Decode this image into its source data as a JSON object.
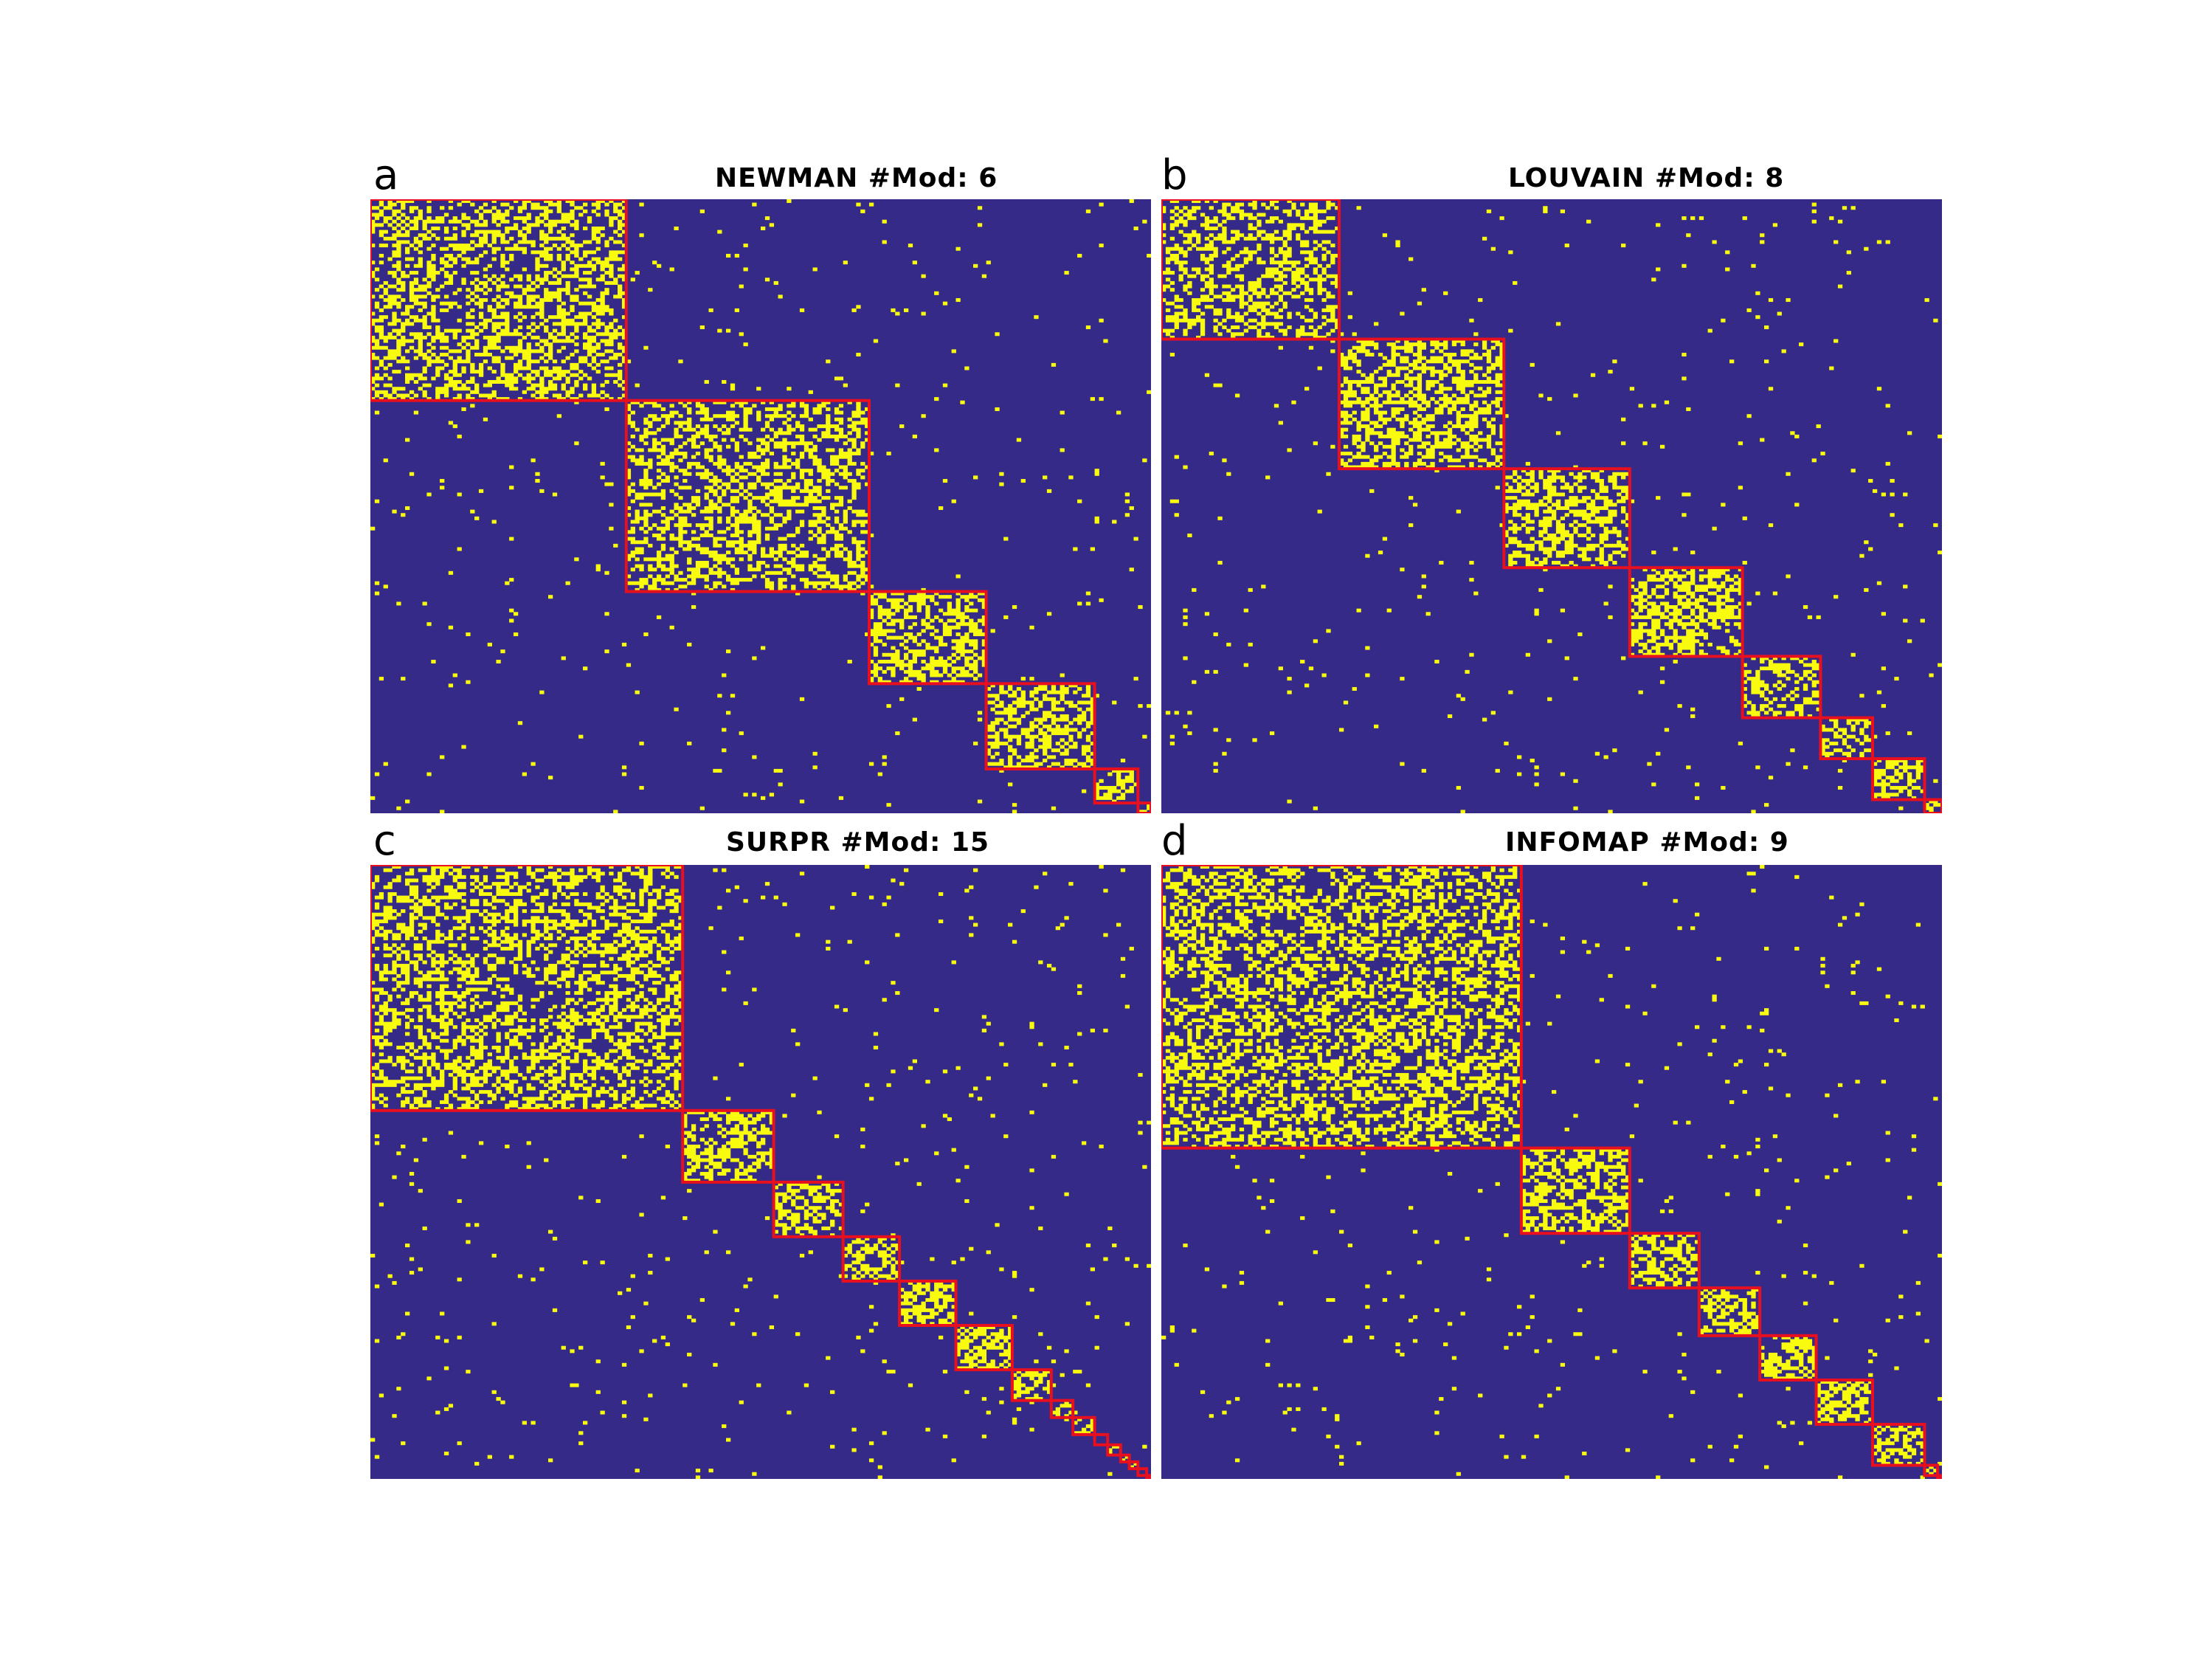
{
  "colors": {
    "background": "#352A87",
    "edge": "#F9FB0E",
    "module_border": "#E8101E"
  },
  "chart_data": [
    {
      "type": "heatmap",
      "panel_letter": "a",
      "title": "NEWMAN #Mod: 6",
      "n_nodes": 180,
      "modules": [
        59,
        56,
        27,
        25,
        10,
        3
      ]
    },
    {
      "type": "heatmap",
      "panel_letter": "b",
      "title": "LOUVAIN #Mod: 8",
      "n_nodes": 180,
      "modules": [
        41,
        38,
        29,
        26,
        18,
        12,
        12,
        4
      ]
    },
    {
      "type": "heatmap",
      "panel_letter": "c",
      "title": "SURPR #Mod: 15",
      "n_nodes": 180,
      "modules": [
        72,
        21,
        16,
        13,
        13,
        13,
        9,
        5,
        5,
        3,
        3,
        2,
        2,
        2,
        1
      ]
    },
    {
      "type": "heatmap",
      "panel_letter": "d",
      "title": "INFOMAP #Mod: 9",
      "n_nodes": 180,
      "modules": [
        83,
        25,
        16,
        14,
        13,
        13,
        12,
        3,
        1
      ]
    }
  ]
}
